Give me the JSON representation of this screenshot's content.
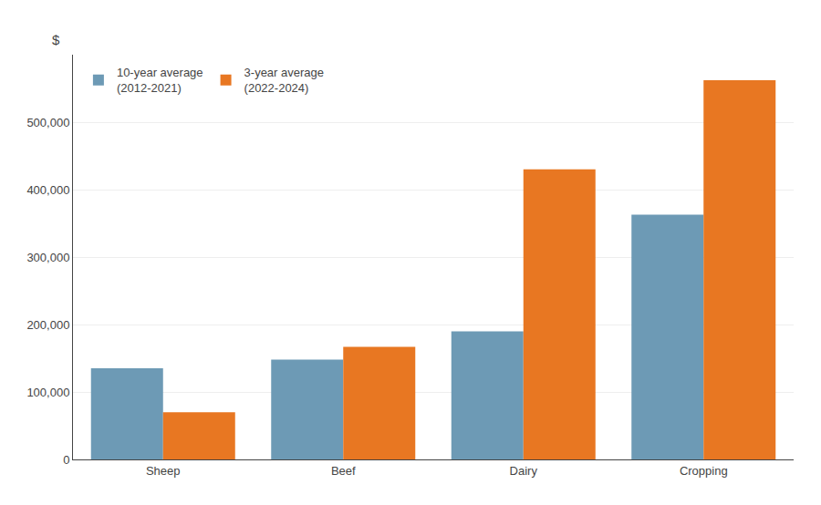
{
  "chart_data": {
    "type": "bar",
    "ylabel": "$",
    "categories": [
      "Sheep",
      "Beef",
      "Dairy",
      "Cropping"
    ],
    "series": [
      {
        "name": "10-year average\n(2012-2021)",
        "color": "#6d9ab5",
        "values": [
          135000,
          148000,
          190000,
          363000
        ]
      },
      {
        "name": "3-year average\n(2022-2024)",
        "color": "#e87722",
        "values": [
          70000,
          167000,
          430000,
          562000
        ]
      }
    ],
    "ylim": [
      0,
      600000
    ],
    "yticks": [
      0,
      {
        "value": 100000,
        "label": "100,000"
      },
      {
        "value": 200000,
        "label": "200,000"
      },
      {
        "value": 300000,
        "label": "300,000"
      },
      {
        "value": 400000,
        "label": "400,000"
      },
      {
        "value": 500000,
        "label": "500,000"
      }
    ],
    "grid": true,
    "legend": "upper left"
  }
}
